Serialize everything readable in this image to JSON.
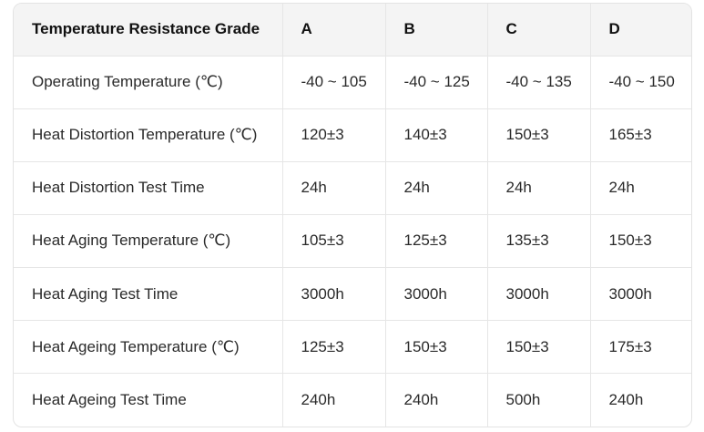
{
  "table": {
    "headers": [
      "Temperature Resistance Grade",
      "A",
      "B",
      "C",
      "D"
    ],
    "rows": [
      [
        "Operating Temperature (℃)",
        "-40 ~ 105",
        "-40 ~ 125",
        "-40 ~ 135",
        "-40 ~ 150"
      ],
      [
        "Heat Distortion Temperature (℃)",
        "120±3",
        "140±3",
        "150±3",
        "165±3"
      ],
      [
        "Heat Distortion Test Time",
        "24h",
        "24h",
        "24h",
        "24h"
      ],
      [
        "Heat Aging Temperature (℃)",
        "105±3",
        "125±3",
        "135±3",
        "150±3"
      ],
      [
        "Heat Aging Test Time",
        "3000h",
        "3000h",
        "3000h",
        "3000h"
      ],
      [
        "Heat Ageing Temperature (℃)",
        "125±3",
        "150±3",
        "150±3",
        "175±3"
      ],
      [
        "Heat Ageing Test Time",
        "240h",
        "240h",
        "500h",
        "240h"
      ]
    ]
  }
}
